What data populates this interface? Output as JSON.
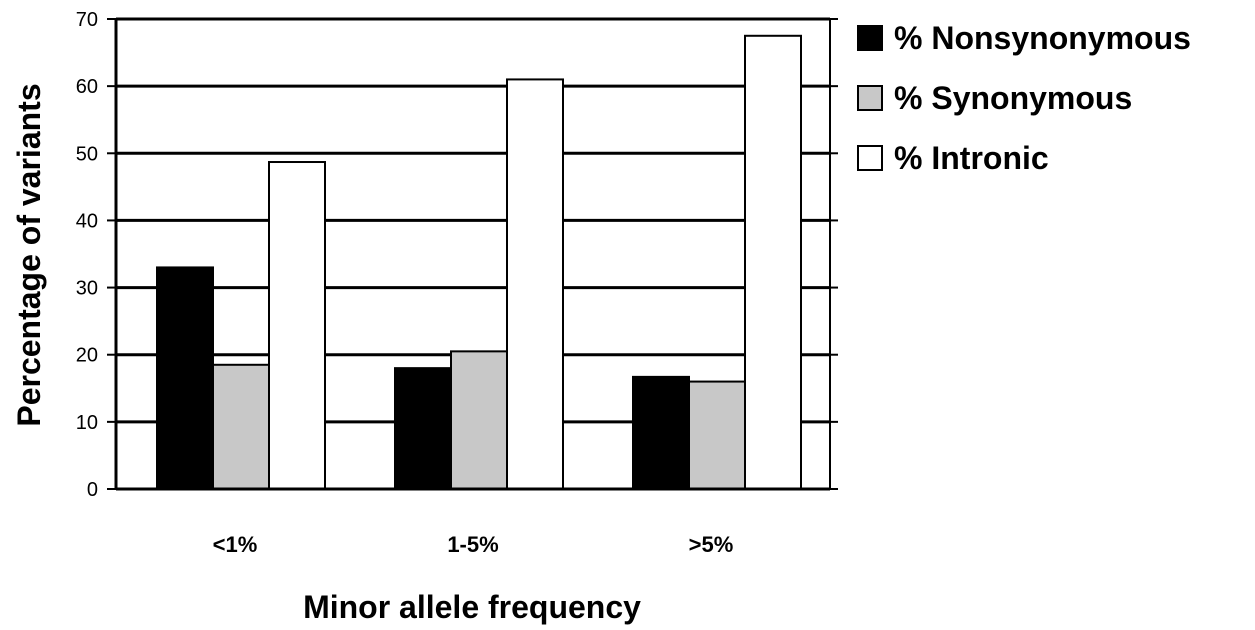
{
  "chart_data": {
    "type": "bar",
    "title": "",
    "xlabel": "Minor allele frequency",
    "ylabel": "Percentage of variants",
    "categories": [
      "<1%",
      "1-5%",
      ">5%"
    ],
    "series": [
      {
        "name": "% Nonsynonymous",
        "values": [
          33,
          18,
          16.7
        ],
        "color": "#000000"
      },
      {
        "name": "% Synonymous",
        "values": [
          18.5,
          20.5,
          16
        ],
        "color": "#c8c8c8"
      },
      {
        "name": "% Intronic",
        "values": [
          48.7,
          61,
          67.5
        ],
        "color": "#ffffff"
      }
    ],
    "ylim": [
      0,
      70
    ],
    "yticks": [
      "0",
      "10",
      "20",
      "30",
      "40",
      "50",
      "60",
      "70"
    ],
    "grid": true,
    "legend_position": "right"
  }
}
